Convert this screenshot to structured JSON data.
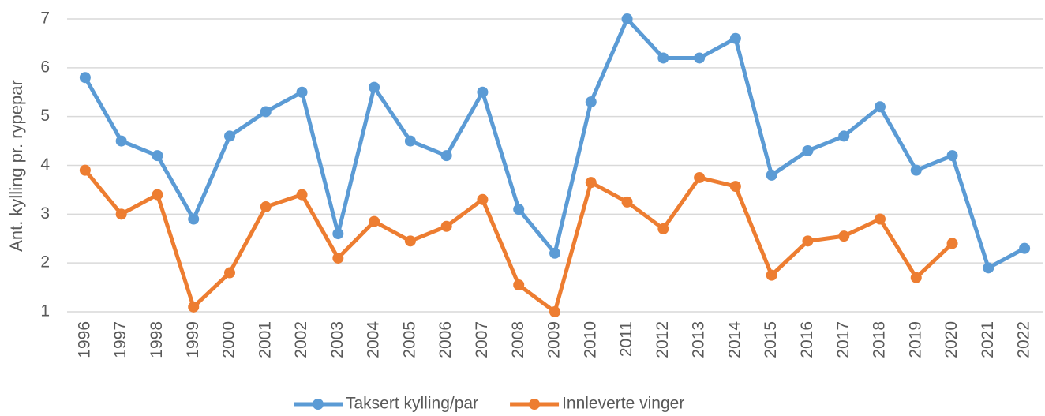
{
  "chart_data": {
    "type": "line",
    "y_label": "Ant. kylling pr. rypepar",
    "categories": [
      "1996",
      "1997",
      "1998",
      "1999",
      "2000",
      "2001",
      "2002",
      "2003",
      "2004",
      "2005",
      "2006",
      "2007",
      "2008",
      "2009",
      "2010",
      "2011",
      "2012",
      "2013",
      "2014",
      "2015",
      "2016",
      "2017",
      "2018",
      "2019",
      "2020",
      "2021",
      "2022"
    ],
    "series": [
      {
        "name": "Taksert kylling/par",
        "color": "#5b9bd5",
        "values": [
          5.8,
          4.5,
          4.2,
          2.9,
          4.6,
          5.1,
          5.5,
          2.6,
          5.6,
          4.5,
          4.2,
          5.5,
          3.1,
          2.2,
          5.3,
          7.0,
          6.2,
          6.2,
          6.6,
          3.8,
          4.3,
          4.6,
          5.2,
          3.9,
          4.2,
          1.9,
          2.3
        ]
      },
      {
        "name": "Innleverte vinger",
        "color": "#ed7d31",
        "values": [
          3.9,
          3.0,
          3.4,
          1.1,
          1.8,
          3.15,
          3.4,
          2.1,
          2.85,
          2.45,
          2.75,
          3.3,
          1.55,
          1.0,
          3.65,
          3.25,
          2.7,
          3.75,
          3.57,
          1.75,
          2.45,
          2.55,
          2.9,
          1.7,
          2.4,
          null,
          null
        ]
      }
    ],
    "ylim": [
      1,
      7
    ],
    "yticks": [
      1,
      2,
      3,
      4,
      5,
      6,
      7
    ],
    "grid": true,
    "legend": "bottom"
  }
}
